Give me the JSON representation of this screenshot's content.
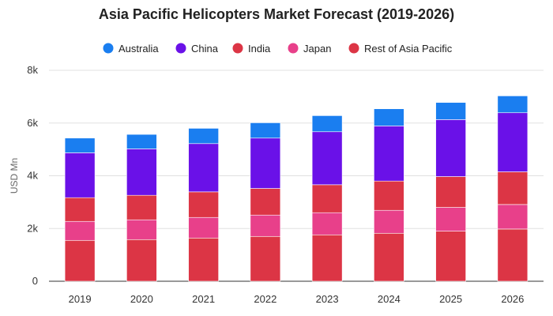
{
  "chart_data": {
    "type": "bar",
    "stacked": true,
    "title": "Asia Pacific Helicopters Market Forecast (2019-2026)",
    "xlabel": "",
    "ylabel": "USD Mn",
    "ylim": [
      0,
      8000
    ],
    "yticks": [
      0,
      2000,
      4000,
      6000,
      8000
    ],
    "ytick_labels": [
      "0",
      "2k",
      "4k",
      "6k",
      "8k"
    ],
    "grid": true,
    "legend_position": "top-center",
    "categories": [
      "2019",
      "2020",
      "2021",
      "2022",
      "2023",
      "2024",
      "2025",
      "2026"
    ],
    "series": [
      {
        "name": "Rest of Asia Pacific",
        "color": "#dc3545",
        "values": [
          1550,
          1580,
          1640,
          1700,
          1760,
          1820,
          1900,
          1980
        ]
      },
      {
        "name": "Japan",
        "color": "#e8408a",
        "values": [
          720,
          750,
          780,
          810,
          840,
          870,
          900,
          930
        ]
      },
      {
        "name": "India",
        "color": "#dc3545",
        "values": [
          900,
          930,
          970,
          1010,
          1060,
          1110,
          1170,
          1240
        ]
      },
      {
        "name": "China",
        "color": "#6a11e8",
        "values": [
          1700,
          1760,
          1830,
          1910,
          2010,
          2090,
          2160,
          2240
        ]
      },
      {
        "name": "Australia",
        "color": "#1a7ef0",
        "values": [
          560,
          550,
          580,
          580,
          610,
          650,
          650,
          640
        ]
      }
    ],
    "legend_order": [
      "Australia",
      "China",
      "India",
      "Japan",
      "Rest of Asia Pacific"
    ]
  }
}
